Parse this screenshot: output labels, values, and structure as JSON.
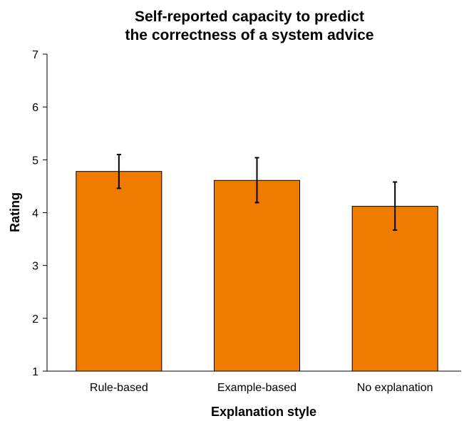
{
  "chart_data": {
    "type": "bar",
    "title": [
      "Self-reported capacity to predict",
      "the correctness of a system advice"
    ],
    "xlabel": "Explanation style",
    "ylabel": "Rating",
    "categories": [
      "Rule-based",
      "Example-based",
      "No explanation"
    ],
    "values": [
      4.78,
      4.61,
      4.12
    ],
    "error_low": [
      4.46,
      4.19,
      3.67
    ],
    "error_high": [
      5.1,
      5.04,
      4.58
    ],
    "ylim": [
      1,
      7
    ],
    "yticks": [
      1,
      2,
      3,
      4,
      5,
      6,
      7
    ],
    "grid": false,
    "colors": {
      "bar": "#ef7b00",
      "outline": "#000000"
    }
  }
}
